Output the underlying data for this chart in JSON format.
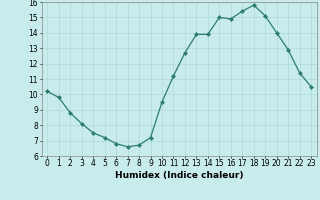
{
  "x": [
    0,
    1,
    2,
    3,
    4,
    5,
    6,
    7,
    8,
    9,
    10,
    11,
    12,
    13,
    14,
    15,
    16,
    17,
    18,
    19,
    20,
    21,
    22,
    23
  ],
  "y": [
    10.2,
    9.8,
    8.8,
    8.1,
    7.5,
    7.2,
    6.8,
    6.6,
    6.7,
    7.2,
    9.5,
    11.2,
    12.7,
    13.9,
    13.9,
    15.0,
    14.9,
    15.4,
    15.8,
    15.1,
    14.0,
    12.9,
    11.4,
    10.5
  ],
  "line_color": "#2e7d6e",
  "marker_color": "#2e7d6e",
  "bg_color": "#c8ecec",
  "grid_color": "#b0d8d8",
  "xlabel": "Humidex (Indice chaleur)",
  "ylim": [
    6,
    16
  ],
  "xlim": [
    -0.5,
    23.5
  ],
  "yticks": [
    6,
    7,
    8,
    9,
    10,
    11,
    12,
    13,
    14,
    15,
    16
  ],
  "xticks": [
    0,
    1,
    2,
    3,
    4,
    5,
    6,
    7,
    8,
    9,
    10,
    11,
    12,
    13,
    14,
    15,
    16,
    17,
    18,
    19,
    20,
    21,
    22,
    23
  ],
  "xtick_labels": [
    "0",
    "1",
    "2",
    "3",
    "4",
    "5",
    "6",
    "7",
    "8",
    "9",
    "10",
    "11",
    "12",
    "13",
    "14",
    "15",
    "16",
    "17",
    "18",
    "19",
    "20",
    "21",
    "22",
    "23"
  ],
  "label_fontsize": 6.5,
  "tick_fontsize": 5.5
}
